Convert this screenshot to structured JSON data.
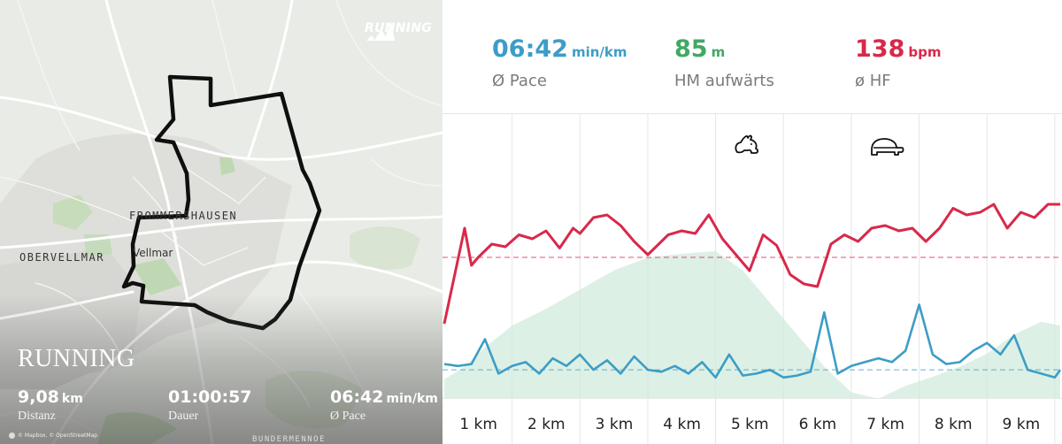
{
  "map": {
    "brand": "RUNNING",
    "places": [
      {
        "id": "frommershausen",
        "label": "FROMMERSHAUSEN"
      },
      {
        "id": "obervellmar",
        "label": "OBERVELLMAR"
      },
      {
        "id": "vellmar",
        "label": "Vellmar"
      },
      {
        "id": "bottom",
        "label": "BUNDERMENNOE"
      }
    ],
    "sport_title": "RUNNING",
    "stats": [
      {
        "id": "distance",
        "value": "9,08",
        "unit": "km",
        "label": "Distanz"
      },
      {
        "id": "duration",
        "value": "01:00:57",
        "unit": "",
        "label": "Dauer"
      },
      {
        "id": "pace",
        "value": "06:42",
        "unit": "min/km",
        "label": "Ø Pace"
      }
    ],
    "attribution": "© Mapbox, © OpenStreetMap"
  },
  "summary": [
    {
      "id": "pace",
      "value": "06:42",
      "unit": "min/km",
      "label": "Ø Pace",
      "color": "#3d9dc6"
    },
    {
      "id": "elevation",
      "value": "85",
      "unit": "m",
      "label": "HM aufwärts",
      "color": "#41a863"
    },
    {
      "id": "heart-rate",
      "value": "138",
      "unit": "bpm",
      "label": "ø HF",
      "color": "#d8294a"
    }
  ],
  "icons": {
    "fastest": "rabbit-icon",
    "slowest": "turtle-icon"
  },
  "chart_data": {
    "type": "line",
    "categories": [
      "1 km",
      "2 km",
      "3 km",
      "4 km",
      "5 km",
      "6 km",
      "7 km",
      "8 km",
      "9 km"
    ],
    "x_range_km": [
      0,
      9.08
    ],
    "colors": {
      "heart_rate": "#d8294a",
      "pace": "#3d9dc6",
      "elevation": "#cfe9da",
      "grid": "#e6e6e6"
    },
    "heart_rate_average_bpm": 138,
    "pace_average": "06:42",
    "series": [
      {
        "id": "heart_rate",
        "x": [
          0,
          0.3,
          0.4,
          0.5,
          0.7,
          0.9,
          1.1,
          1.3,
          1.5,
          1.7,
          1.9,
          2.0,
          2.2,
          2.4,
          2.6,
          2.8,
          3.0,
          3.3,
          3.5,
          3.7,
          3.9,
          4.1,
          4.3,
          4.5,
          4.7,
          4.9,
          5.1,
          5.3,
          5.5,
          5.7,
          5.9,
          6.1,
          6.3,
          6.5,
          6.7,
          6.9,
          7.1,
          7.3,
          7.5,
          7.7,
          7.9,
          8.1,
          8.3,
          8.5,
          8.7,
          8.9,
          9.08
        ],
        "values": [
          88,
          160,
          132,
          138,
          148,
          146,
          155,
          152,
          158,
          145,
          160,
          156,
          168,
          170,
          162,
          150,
          140,
          155,
          158,
          156,
          170,
          152,
          140,
          128,
          155,
          147,
          125,
          118,
          116,
          148,
          155,
          150,
          160,
          162,
          158,
          160,
          150,
          160,
          175,
          170,
          172,
          178,
          160,
          172,
          168,
          178,
          178
        ]
      },
      {
        "id": "pace",
        "x": [
          0,
          0.2,
          0.4,
          0.6,
          0.8,
          1.0,
          1.2,
          1.4,
          1.6,
          1.8,
          2.0,
          2.2,
          2.4,
          2.6,
          2.8,
          3.0,
          3.2,
          3.4,
          3.6,
          3.8,
          4.0,
          4.2,
          4.4,
          4.6,
          4.8,
          5.0,
          5.2,
          5.4,
          5.6,
          5.8,
          6.0,
          6.2,
          6.4,
          6.6,
          6.8,
          7.0,
          7.2,
          7.4,
          7.6,
          7.8,
          8.0,
          8.2,
          8.4,
          8.6,
          8.8,
          9.0,
          9.08
        ],
        "values": [
          6.55,
          6.6,
          6.55,
          5.9,
          6.8,
          6.6,
          6.5,
          6.8,
          6.4,
          6.6,
          6.3,
          6.7,
          6.45,
          6.8,
          6.35,
          6.7,
          6.75,
          6.6,
          6.8,
          6.5,
          6.9,
          6.3,
          6.85,
          6.8,
          6.7,
          6.9,
          6.85,
          6.75,
          5.2,
          6.8,
          6.6,
          6.5,
          6.4,
          6.5,
          6.2,
          5.0,
          6.3,
          6.55,
          6.5,
          6.2,
          6.0,
          6.3,
          5.8,
          6.7,
          6.8,
          6.9,
          6.7
        ]
      },
      {
        "id": "elevation",
        "x": [
          0,
          0.3,
          0.6,
          1.0,
          1.5,
          2.0,
          2.5,
          3.0,
          3.5,
          4.0,
          4.4,
          4.8,
          5.2,
          5.6,
          6.0,
          6.4,
          6.8,
          7.2,
          7.6,
          8.0,
          8.4,
          8.8,
          9.08
        ],
        "values": [
          20,
          30,
          45,
          62,
          75,
          90,
          105,
          115,
          118,
          120,
          105,
          80,
          55,
          30,
          10,
          5,
          15,
          22,
          30,
          40,
          55,
          65,
          62
        ]
      }
    ]
  }
}
